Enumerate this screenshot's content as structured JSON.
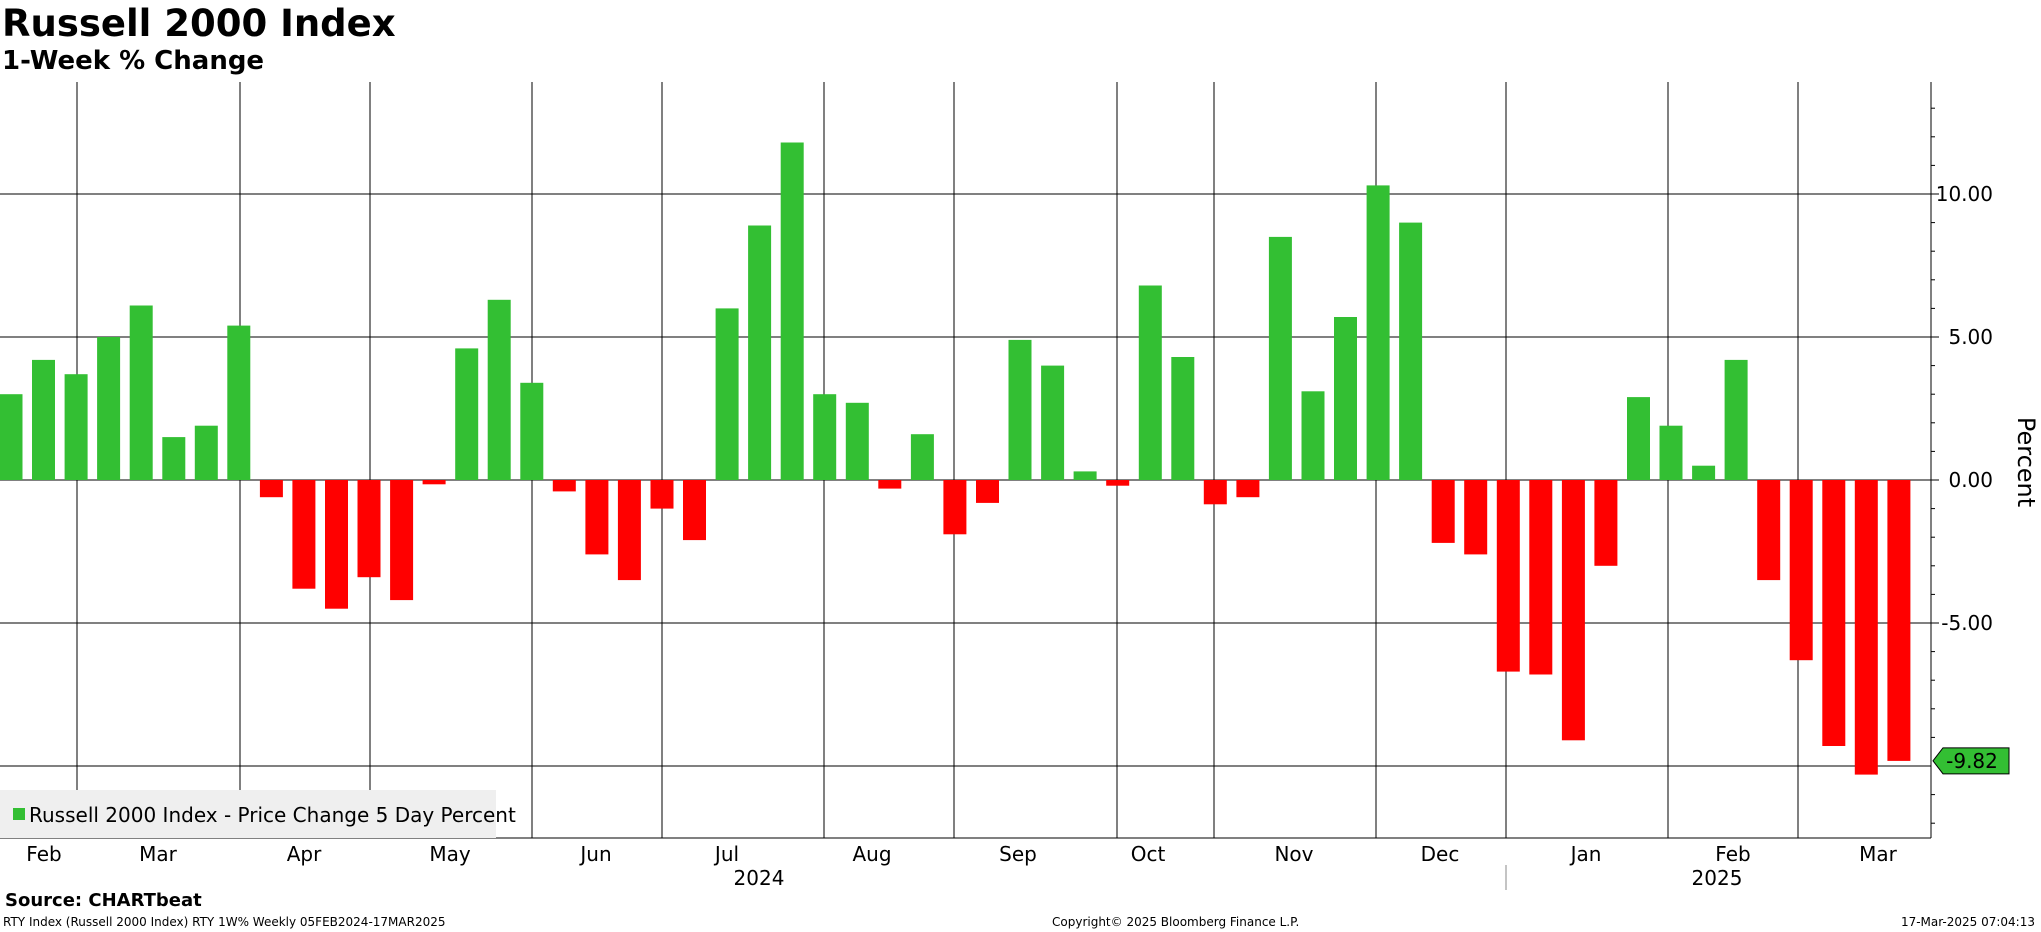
{
  "header": {
    "title": "Russell 2000 Index",
    "subtitle": "1-Week % Change"
  },
  "footer": {
    "source": "Source: CHARTbeat",
    "security": "RTY Index (Russell 2000 Index) RTY 1W%  Weekly 05FEB2024-17MAR2025",
    "copyright": "Copyright© 2025 Bloomberg Finance L.P.",
    "timestamp": "17-Mar-2025 07:04:13"
  },
  "colors": {
    "positive": "#33bf33",
    "negative": "#ff0000",
    "last_value_badge": "#33bf33"
  },
  "chart_data": {
    "type": "bar",
    "title": "Russell 2000 Index",
    "subtitle": "1-Week % Change",
    "ylabel": "Percent",
    "ylim": [
      -12.5,
      13.9
    ],
    "yticks": [
      -5,
      0,
      5,
      10
    ],
    "ytick_labels": [
      "-5.00",
      "0.00",
      "5.00",
      "10.00"
    ],
    "y_axis_side": "right",
    "grid": true,
    "legend": {
      "label": "Russell 2000 Index - Price Change 5 Day Percent",
      "position": "bottom-left"
    },
    "last_value_label": "-9.82",
    "month_labels": [
      "Feb",
      "Mar",
      "Apr",
      "May",
      "Jun",
      "Jul",
      "Aug",
      "Sep",
      "Oct",
      "Nov",
      "Dec",
      "Jan",
      "Feb",
      "Mar"
    ],
    "year_labels": [
      "2024",
      "2025"
    ],
    "series": [
      {
        "values": [
          3.0,
          4.2,
          3.7,
          5.0,
          6.1,
          1.5,
          1.9,
          5.4,
          -0.6,
          -3.8,
          -4.5,
          -3.4,
          -4.2,
          -0.15,
          4.6,
          6.3,
          3.4,
          -0.4,
          -2.6,
          -3.5,
          -1.0,
          -2.1,
          6.0,
          8.9,
          11.8,
          3.0,
          2.7,
          -0.3,
          1.6,
          -1.9,
          -0.8,
          4.9,
          4.0,
          0.3,
          -0.2,
          6.8,
          4.3,
          -0.85,
          -0.6,
          8.5,
          3.1,
          5.7,
          10.3,
          9.0,
          -2.2,
          -2.6,
          -6.7,
          -6.8,
          -9.1,
          -3.0,
          2.9,
          1.9,
          0.5,
          4.2,
          -3.5,
          -6.3,
          -9.3,
          -10.3,
          -9.82
        ]
      }
    ]
  }
}
